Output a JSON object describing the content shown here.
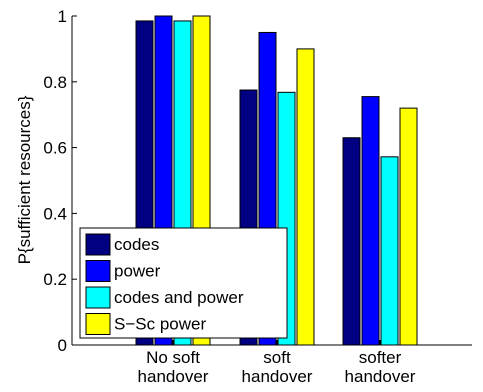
{
  "chart_data": {
    "type": "bar",
    "ylabel": "P{sufficient resources}",
    "ylim": [
      0,
      1
    ],
    "yticks": [
      0,
      0.2,
      0.4,
      0.6,
      0.8,
      1
    ],
    "ytick_labels": [
      "0",
      "0.2",
      "0.4",
      "0.6",
      "0.8",
      "1"
    ],
    "categories": [
      [
        "No soft",
        "handover"
      ],
      [
        "soft",
        "handover"
      ],
      [
        "softer",
        "handover"
      ]
    ],
    "legend_position": "bottom-left",
    "series": [
      {
        "name": "codes",
        "color": "#000080",
        "values": [
          0.985,
          0.775,
          0.63
        ]
      },
      {
        "name": "power",
        "color": "#0000ff",
        "values": [
          1.0,
          0.95,
          0.755
        ]
      },
      {
        "name": "codes and power",
        "color": "#00ffff",
        "values": [
          0.985,
          0.768,
          0.572
        ]
      },
      {
        "name": "S−Sc power",
        "color": "#ffff00",
        "values": [
          1.0,
          0.9,
          0.72
        ]
      }
    ]
  }
}
